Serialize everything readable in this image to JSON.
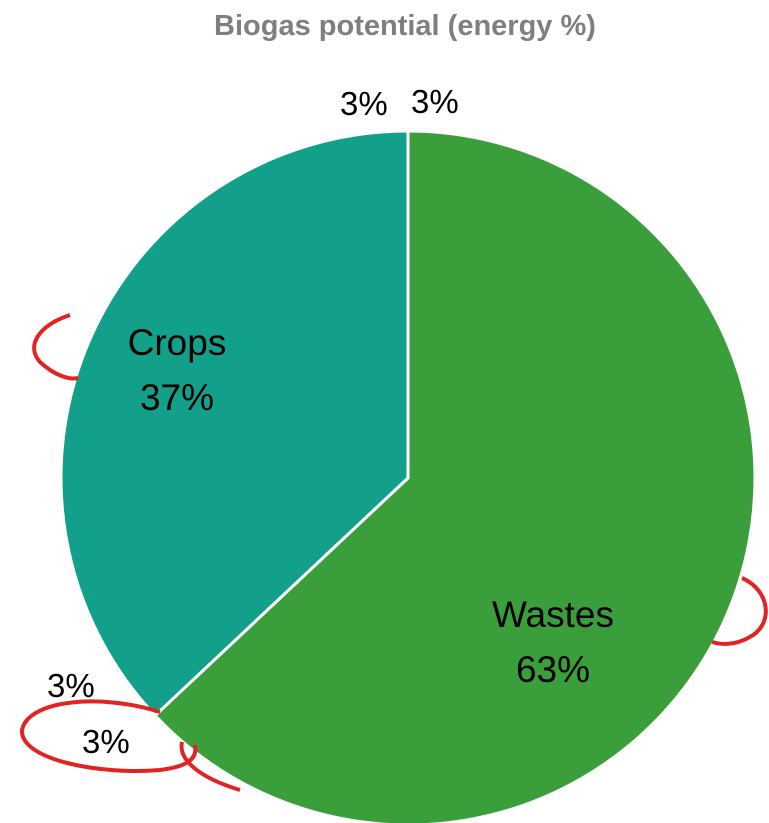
{
  "chart_data": {
    "type": "pie",
    "title": "Biogas potential (energy %)",
    "slices": [
      {
        "name": "Wastes",
        "label_name": "Wastes",
        "label_pct": "63%",
        "value": 63,
        "color": "#3a9f3a"
      },
      {
        "name": "Crops",
        "label_name": "Crops",
        "label_pct": "37%",
        "value": 37,
        "color": "#12a08a"
      }
    ],
    "extra_labels": [
      "3%",
      "3%",
      "3%",
      "3%"
    ],
    "start_angle_deg": 0,
    "direction": "clockwise",
    "legend": "none",
    "annotation_color": "#e32222"
  }
}
